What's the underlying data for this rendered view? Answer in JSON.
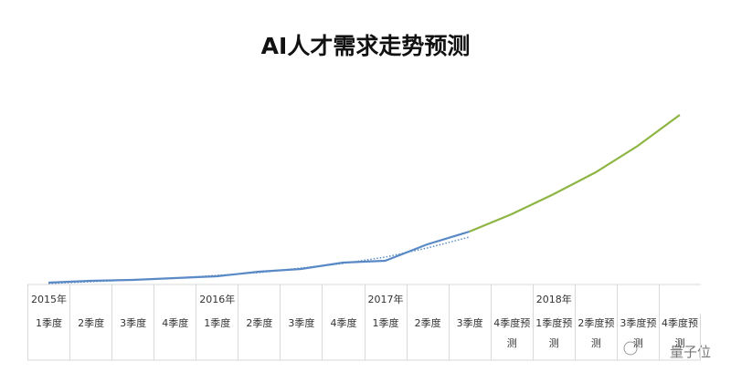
{
  "chart_data": {
    "type": "line",
    "title": "AI人才需求走势预测",
    "categories": [
      "1季度",
      "2季度",
      "3季度",
      "4季度",
      "1季度",
      "2季度",
      "3季度",
      "4季度",
      "1季度",
      "2季度",
      "3季度",
      "4季度预测",
      "1季度预测",
      "2季度预测",
      "3季度预测",
      "4季度预测"
    ],
    "years": [
      "2015年",
      null,
      null,
      null,
      "2016年",
      null,
      null,
      null,
      "2017年",
      null,
      null,
      null,
      "2018年",
      null,
      null,
      null
    ],
    "series": [
      {
        "color": "#5a8ac6",
        "style": "solid",
        "values": [
          2,
          4,
          5,
          7,
          9,
          14,
          17,
          24,
          26,
          44,
          58,
          null,
          null,
          null,
          null,
          null
        ]
      },
      {
        "color": "#8db543",
        "style": "solid",
        "values": [
          null,
          null,
          null,
          null,
          null,
          null,
          null,
          null,
          null,
          null,
          58,
          77,
          99,
          123,
          152,
          186
        ]
      },
      {
        "color": "#5a8ac6",
        "style": "dotted",
        "values": [
          1,
          3,
          5,
          7,
          10,
          13,
          18,
          23,
          30,
          40,
          52,
          null,
          null,
          null,
          null,
          null
        ]
      }
    ],
    "ylim": [
      0,
      200
    ],
    "watermark": "量子位"
  }
}
